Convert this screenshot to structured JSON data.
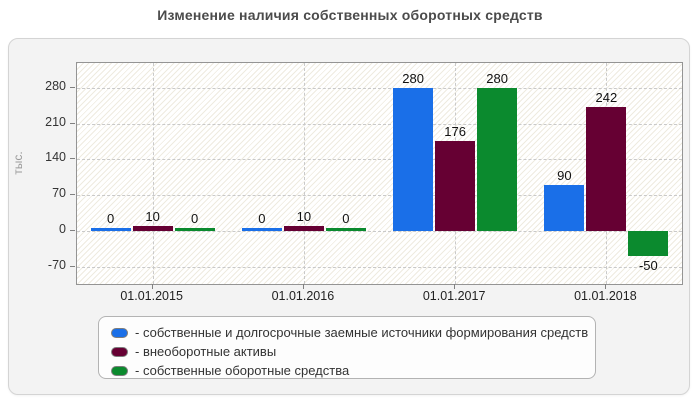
{
  "title": "Изменение наличия собственных оборотных средств",
  "chart_data": {
    "type": "bar",
    "title": "Изменение наличия собственных оборотных средств",
    "categories": [
      "01.01.2015",
      "01.01.2016",
      "01.01.2017",
      "01.01.2018"
    ],
    "series": [
      {
        "name": "собственные и долгосрочные заемные источники формирования средств",
        "color": "#1a6fe8",
        "values": [
          0,
          0,
          280,
          90
        ]
      },
      {
        "name": "внеоборотные активы",
        "color": "#660033",
        "values": [
          10,
          10,
          176,
          242
        ]
      },
      {
        "name": "собственные оборотные средства",
        "color": "#0b8a2e",
        "values": [
          0,
          0,
          280,
          -50
        ]
      }
    ],
    "ylabel": "тыс.",
    "yticks": [
      280,
      210,
      140,
      70,
      0,
      -70
    ],
    "ylim": [
      -104,
      329
    ],
    "grid": "dashed",
    "legend_position": "bottom",
    "legend_prefix": "- ",
    "colors": {
      "grid": "#c9c9c9",
      "axis": "#949494",
      "tick_text": "#333333",
      "value_text": "#111111",
      "title_text": "#4b4b4b"
    }
  }
}
